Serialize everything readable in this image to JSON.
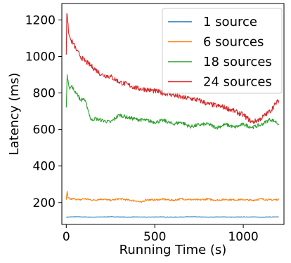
{
  "chart_data": {
    "type": "line",
    "xlabel": "Running Time (s)",
    "ylabel": "Latency (ms)",
    "xlim": [
      -25,
      1230
    ],
    "ylim": [
      80,
      1290
    ],
    "xticks": [
      0,
      500,
      1000
    ],
    "yticks": [
      200,
      400,
      600,
      800,
      1000,
      1200
    ],
    "grid": false,
    "legend_position": "top-right",
    "series": [
      {
        "name": "1 source",
        "color": "#1f77b4",
        "x": [
          0,
          50,
          100,
          150,
          200,
          250,
          300,
          350,
          400,
          450,
          500,
          550,
          600,
          650,
          700,
          750,
          800,
          850,
          900,
          950,
          1000,
          1050,
          1100,
          1150,
          1200
        ],
        "y": [
          120,
          122,
          121,
          120,
          121,
          122,
          121,
          120,
          121,
          120,
          121,
          121,
          120,
          121,
          122,
          121,
          120,
          121,
          121,
          120,
          121,
          121,
          120,
          121,
          121
        ]
      },
      {
        "name": "6 sources",
        "color": "#ff7f0e",
        "x": [
          0,
          5,
          10,
          25,
          50,
          75,
          100,
          150,
          200,
          250,
          300,
          350,
          400,
          425,
          450,
          500,
          550,
          600,
          650,
          700,
          750,
          800,
          850,
          900,
          950,
          1000,
          1050,
          1100,
          1150,
          1200
        ],
        "y": [
          215,
          262,
          225,
          218,
          220,
          214,
          221,
          213,
          219,
          212,
          220,
          214,
          208,
          200,
          216,
          214,
          218,
          212,
          220,
          216,
          214,
          219,
          213,
          217,
          215,
          216,
          212,
          220,
          214,
          216
        ]
      },
      {
        "name": "18 sources",
        "color": "#2ca02c",
        "x": [
          0,
          5,
          10,
          20,
          30,
          45,
          60,
          80,
          100,
          120,
          140,
          160,
          200,
          250,
          300,
          350,
          400,
          450,
          500,
          550,
          600,
          650,
          700,
          750,
          800,
          850,
          900,
          950,
          1000,
          1050,
          1100,
          1150,
          1180,
          1200
        ],
        "y": [
          720,
          900,
          870,
          820,
          840,
          810,
          800,
          760,
          770,
          720,
          650,
          660,
          650,
          640,
          680,
          665,
          655,
          650,
          640,
          650,
          630,
          640,
          615,
          625,
          630,
          610,
          628,
          612,
          628,
          612,
          625,
          655,
          645,
          630
        ]
      },
      {
        "name": "24 sources",
        "color": "#d62728",
        "x": [
          0,
          3,
          8,
          15,
          25,
          40,
          60,
          80,
          100,
          125,
          150,
          175,
          200,
          250,
          300,
          350,
          400,
          450,
          500,
          550,
          600,
          650,
          700,
          750,
          800,
          850,
          900,
          950,
          1000,
          1050,
          1080,
          1100,
          1150,
          1200
        ],
        "y": [
          1010,
          1235,
          1190,
          1120,
          1090,
          1070,
          1030,
          1000,
          980,
          960,
          940,
          920,
          900,
          890,
          860,
          845,
          825,
          820,
          810,
          800,
          790,
          775,
          770,
          760,
          740,
          730,
          720,
          700,
          680,
          640,
          650,
          660,
          700,
          760
        ]
      }
    ]
  }
}
